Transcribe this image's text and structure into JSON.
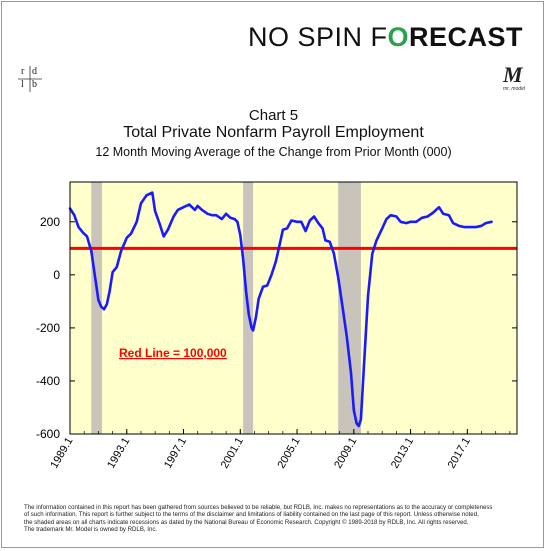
{
  "header": {
    "brand_part1": "NO SPIN F",
    "brand_part2": "O",
    "brand_part3": "RECAST",
    "brand_green": "#2aa24a",
    "logo_left_letters": [
      "r",
      "d",
      "l",
      "b"
    ],
    "logo_right_letter": "M",
    "logo_right_caption": "mr. model"
  },
  "chart_data": {
    "type": "line",
    "title": "Chart 5",
    "subtitle": "Total Private Nonfarm Payroll Employment",
    "subtitle2": "12 Month Moving Average of the Change from Prior Month (000)",
    "xlabel": "",
    "ylabel": "",
    "xlim": [
      1989.0,
      2020.5
    ],
    "ylim": [
      -600,
      350
    ],
    "yticks": [
      200,
      0,
      -200,
      -400,
      -600
    ],
    "xticks": [
      "1989.1",
      "1993.1",
      "1997.1",
      "2001.1",
      "2005.1",
      "2009.1",
      "2013.1",
      "2017.1"
    ],
    "xtick_values": [
      1989.0,
      1993.0,
      1997.0,
      2001.0,
      2005.0,
      2009.0,
      2013.0,
      2017.0
    ],
    "reference_line": {
      "value": 100,
      "color": "#ff0000",
      "label": "Red Line = 100,000"
    },
    "recessions": [
      [
        1990.5,
        1991.25
      ],
      [
        2001.2,
        2001.9
      ],
      [
        2007.9,
        2009.5
      ]
    ],
    "recession_color": "#c8c3bb",
    "series": [
      {
        "color": "#1a1aff",
        "x": [
          1989.0,
          1989.3,
          1989.6,
          1989.9,
          1990.2,
          1990.5,
          1990.8,
          1991.0,
          1991.2,
          1991.4,
          1991.6,
          1991.8,
          1992.0,
          1992.3,
          1992.6,
          1993.0,
          1993.3,
          1993.7,
          1994.0,
          1994.4,
          1994.8,
          1995.0,
          1995.3,
          1995.6,
          1995.9,
          1996.3,
          1996.6,
          1997.0,
          1997.4,
          1997.8,
          1998.0,
          1998.3,
          1998.7,
          1999.0,
          1999.3,
          1999.7,
          2000.0,
          2000.3,
          2000.6,
          2000.8,
          2001.0,
          2001.2,
          2001.4,
          2001.6,
          2001.8,
          2001.9,
          2002.1,
          2002.3,
          2002.6,
          2002.9,
          2003.2,
          2003.5,
          2003.8,
          2004.0,
          2004.3,
          2004.6,
          2005.0,
          2005.3,
          2005.6,
          2005.9,
          2006.2,
          2006.5,
          2006.8,
          2007.0,
          2007.3,
          2007.6,
          2007.9,
          2008.2,
          2008.5,
          2008.8,
          2009.0,
          2009.2,
          2009.35,
          2009.5,
          2009.7,
          2010.0,
          2010.3,
          2010.6,
          2011.0,
          2011.3,
          2011.6,
          2012.0,
          2012.3,
          2012.7,
          2013.0,
          2013.4,
          2013.8,
          2014.2,
          2014.6,
          2015.0,
          2015.3,
          2015.7,
          2016.0,
          2016.4,
          2016.8,
          2017.2,
          2017.6,
          2018.0,
          2018.3,
          2018.7
        ],
        "values": [
          250,
          225,
          180,
          160,
          145,
          90,
          -20,
          -95,
          -120,
          -130,
          -110,
          -60,
          10,
          30,
          90,
          140,
          155,
          200,
          270,
          300,
          310,
          240,
          195,
          145,
          170,
          220,
          245,
          255,
          265,
          245,
          260,
          245,
          230,
          225,
          225,
          210,
          230,
          215,
          210,
          200,
          150,
          60,
          -60,
          -150,
          -200,
          -210,
          -160,
          -90,
          -45,
          -40,
          0,
          50,
          120,
          170,
          175,
          205,
          200,
          200,
          165,
          205,
          220,
          195,
          175,
          130,
          125,
          80,
          -10,
          -120,
          -230,
          -370,
          -510,
          -560,
          -570,
          -545,
          -360,
          -80,
          80,
          130,
          175,
          210,
          225,
          220,
          200,
          195,
          200,
          200,
          215,
          220,
          235,
          255,
          230,
          225,
          195,
          185,
          180,
          180,
          180,
          185,
          195,
          200
        ]
      }
    ],
    "legend": "none",
    "grid": false,
    "background": "#ffffcc",
    "axis_color": "#000000"
  },
  "disclaimer": {
    "line1": "The information contained in this report has been gathered from sources believed to be reliable, but RDLB, Inc. makes no representations as to the accuracy or completeness",
    "line2": "of such information. This report is further subject to the terms of the disclaimer and limitations of liability contained on the last page of this report. Unless otherwise noted,",
    "line3": "the shaded areas on all charts indicate recessions as dated by the National Bureau of Economic Research. Copyright © 1989-2018 by RDLB, Inc. All rights reserved.",
    "line4": "The trademark Mr. Model is owned by RDLB, Inc."
  }
}
